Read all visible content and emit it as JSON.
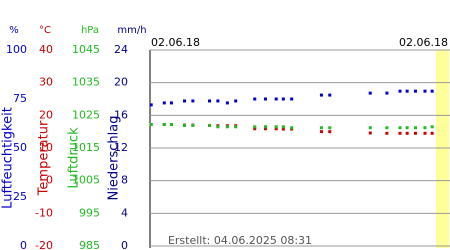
{
  "chart_data": {
    "type": "scatter",
    "date_labels": [
      "02.06.18",
      "02.06.18"
    ],
    "footer": "Erstellt: 04.06.2025 08:31",
    "x": [
      0.1,
      1.2,
      1.8,
      2.9,
      3.6,
      5.0,
      5.7,
      6.5,
      7.2,
      8.8,
      9.7,
      10.6,
      11.2,
      11.9,
      14.4,
      15.1,
      18.5,
      19.9,
      21.0,
      21.6,
      22.3,
      23.1,
      23.7
    ],
    "xlim": [
      0,
      25.2
    ],
    "axes": [
      {
        "unit": "%",
        "title": "Luftfeuchtigkeit",
        "color": "#0000cc",
        "ylim": [
          0,
          100
        ],
        "yticks": [
          0,
          25,
          50,
          75,
          100
        ],
        "values": [
          72,
          73,
          73,
          74,
          74,
          74,
          74,
          73,
          74,
          75,
          75,
          75,
          75,
          75,
          77,
          77,
          78,
          78,
          79,
          79,
          79,
          79,
          79
        ]
      },
      {
        "unit": "°C",
        "title": "Temperatur",
        "color": "#cc0000",
        "ylim": [
          -20,
          40
        ],
        "yticks": [
          -20,
          -10,
          0,
          10,
          20,
          30,
          40
        ],
        "values": [
          17.2,
          17.2,
          17.2,
          17.0,
          17.0,
          16.9,
          16.8,
          16.8,
          16.8,
          15.9,
          15.9,
          15.9,
          15.8,
          15.8,
          15.0,
          15.0,
          14.6,
          14.5,
          14.5,
          14.5,
          14.5,
          14.5,
          14.5
        ]
      },
      {
        "unit": "hPa",
        "title": "Luftdruck",
        "color": "#22bb22",
        "ylim": [
          985,
          1045
        ],
        "yticks": [
          985,
          995,
          1005,
          1015,
          1025,
          1035,
          1045
        ],
        "values": [
          1022.2,
          1022.2,
          1022.2,
          1021.9,
          1021.9,
          1021.9,
          1021.5,
          1021.5,
          1021.5,
          1021.5,
          1021.5,
          1021.5,
          1021.5,
          1021.2,
          1021.2,
          1021.2,
          1021.2,
          1021.2,
          1021.2,
          1021.2,
          1021.2,
          1021.2,
          1021.5
        ]
      },
      {
        "unit": "mm/h",
        "title": "Niederschlag",
        "color": "#000088",
        "ylim": [
          0,
          24
        ],
        "yticks": [
          0,
          4,
          8,
          12,
          16,
          20,
          24
        ]
      }
    ]
  }
}
